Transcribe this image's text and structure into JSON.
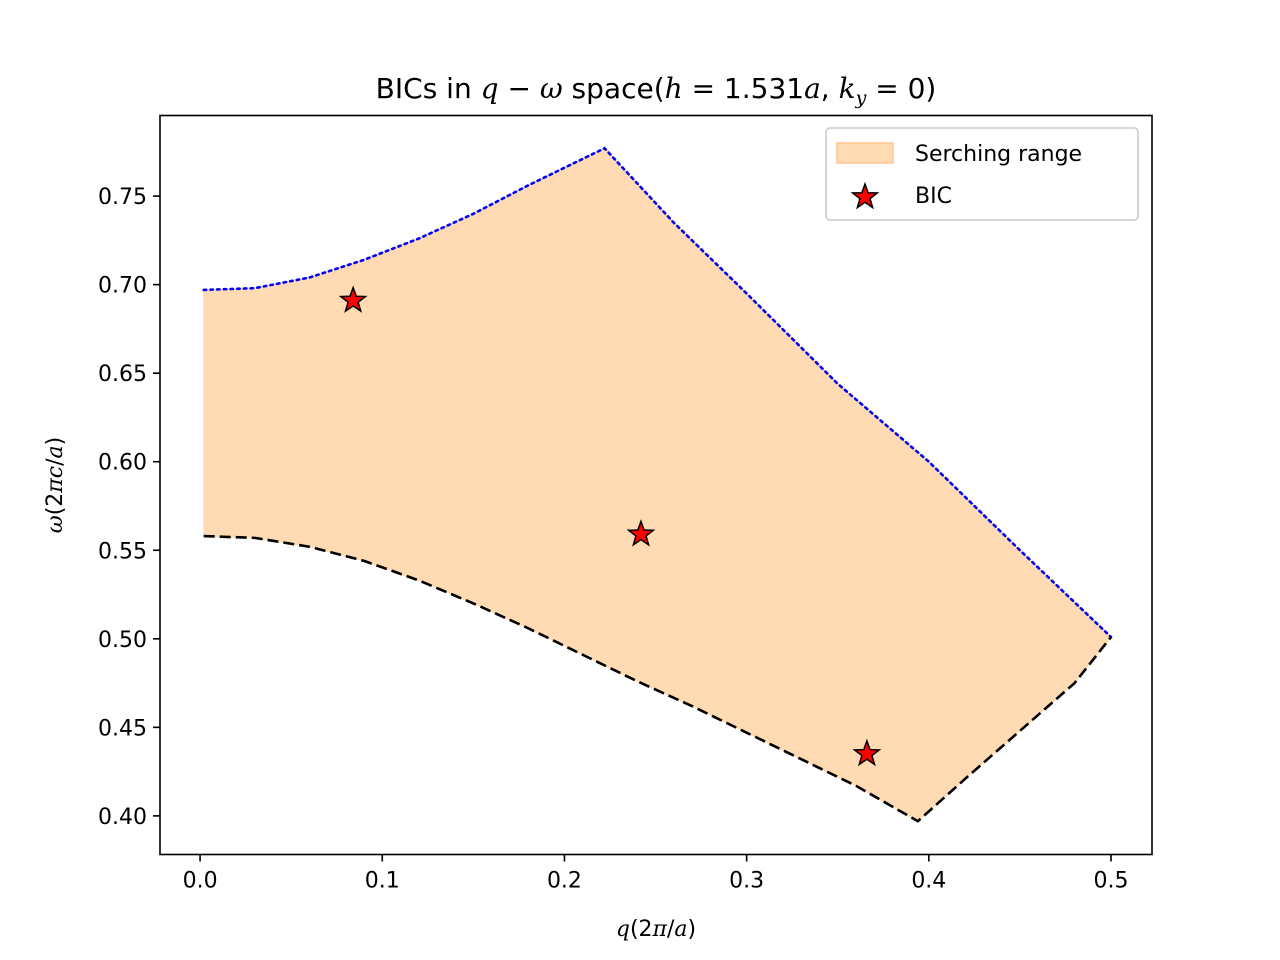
{
  "chart_data": {
    "type": "area",
    "title": "BICs in q − ω space(h = 1.531a, k_y = 0)",
    "title_parts": {
      "lead": "BICs in ",
      "q": "q",
      "minus": " − ",
      "omega": "ω",
      "space": " space(",
      "h": "h",
      "eq1": " = 1.531",
      "a": "a",
      "comma": ", ",
      "k": "k",
      "sub_y": "y",
      "eq2": " = 0)"
    },
    "xlabel": "q(2π/a)",
    "ylabel": "ω(2πc/a)",
    "xlim": [
      -0.022,
      0.5225
    ],
    "ylim": [
      0.3782,
      0.7955
    ],
    "xticks": [
      "0.0",
      "0.1",
      "0.2",
      "0.3",
      "0.4",
      "0.5"
    ],
    "xtick_values": [
      0.0,
      0.1,
      0.2,
      0.3,
      0.4,
      0.5
    ],
    "yticks": [
      "0.40",
      "0.45",
      "0.50",
      "0.55",
      "0.60",
      "0.65",
      "0.70",
      "0.75"
    ],
    "ytick_values": [
      0.4,
      0.45,
      0.5,
      0.55,
      0.6,
      0.65,
      0.7,
      0.75
    ],
    "grid": false,
    "legend_position": "top-right",
    "colors": {
      "fill": "#ffdab3",
      "upper_line": "#0000ff",
      "lower_line": "#000000",
      "marker_fill": "#ff0000",
      "marker_edge": "#000000"
    },
    "upper_boundary": {
      "style": "dotted",
      "x": [
        0.002,
        0.03,
        0.06,
        0.09,
        0.12,
        0.15,
        0.18,
        0.2,
        0.222,
        0.26,
        0.3,
        0.35,
        0.4,
        0.45,
        0.5
      ],
      "y": [
        0.697,
        0.698,
        0.704,
        0.714,
        0.726,
        0.74,
        0.756,
        0.766,
        0.777,
        0.735,
        0.695,
        0.644,
        0.6,
        0.55,
        0.501
      ]
    },
    "lower_boundary": {
      "style": "dashed",
      "x": [
        0.002,
        0.03,
        0.06,
        0.09,
        0.12,
        0.15,
        0.18,
        0.21,
        0.24,
        0.27,
        0.3,
        0.33,
        0.36,
        0.394,
        0.42,
        0.45,
        0.48,
        0.5
      ],
      "y": [
        0.558,
        0.557,
        0.552,
        0.544,
        0.533,
        0.52,
        0.506,
        0.491,
        0.476,
        0.462,
        0.447,
        0.432,
        0.417,
        0.397,
        0.421,
        0.448,
        0.475,
        0.501
      ]
    },
    "series": [
      {
        "name": "Serching range",
        "kind": "fill_between"
      },
      {
        "name": "BIC",
        "kind": "scatter",
        "marker": "star",
        "x": [
          0.084,
          0.242,
          0.366
        ],
        "y": [
          0.691,
          0.559,
          0.435
        ]
      }
    ]
  }
}
